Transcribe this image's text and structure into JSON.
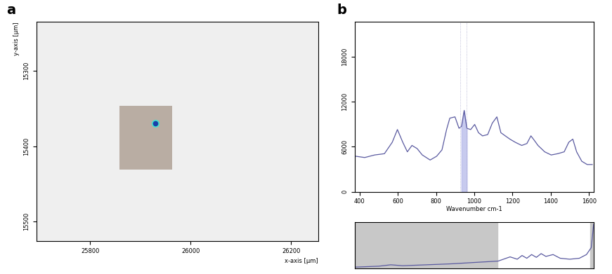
{
  "chart_data": [
    {
      "type": "scatter",
      "panel_label": "a",
      "x_label": "x-axis [µm]",
      "y_label": "y-axis [µm]",
      "x": [
        25930
      ],
      "y": [
        15370
      ],
      "color": "#1a3fa8",
      "image_region": {
        "x": [
          25859,
          25964
        ],
        "y": [
          15346,
          15431
        ]
      },
      "xlim": [
        25694,
        26254
      ],
      "ylim": [
        15526,
        15235
      ],
      "xticks": [
        25800,
        26000,
        26200
      ],
      "yticks": [
        15300,
        15400,
        15500
      ]
    },
    {
      "type": "line",
      "panel_label": "b",
      "x_label": "Wavenumber cm-1",
      "color": "#5a5aa0",
      "x": [
        380,
        427,
        479,
        530,
        571,
        598,
        626,
        650,
        674,
        701,
        728,
        769,
        803,
        831,
        855,
        872,
        899,
        920,
        933,
        947,
        961,
        981,
        1002,
        1022,
        1043,
        1070,
        1094,
        1118,
        1139,
        1162,
        1186,
        1214,
        1248,
        1275,
        1296,
        1309,
        1333,
        1368,
        1402,
        1436,
        1470,
        1494,
        1515,
        1535,
        1562,
        1590,
        1617
      ],
      "values": [
        4730,
        4560,
        4900,
        5070,
        6590,
        8280,
        6590,
        5320,
        6170,
        5750,
        4900,
        4230,
        4730,
        5580,
        8280,
        9800,
        9970,
        8450,
        8700,
        10820,
        8450,
        8280,
        8960,
        7860,
        7440,
        7610,
        9130,
        9970,
        7860,
        7440,
        7010,
        6590,
        6170,
        6420,
        7440,
        7010,
        6170,
        5320,
        4900,
        5070,
        5320,
        6590,
        7010,
        5320,
        4060,
        3630,
        3630
      ],
      "highlight_range": [
        926,
        961
      ],
      "xlim": [
        376,
        1624
      ],
      "ylim": [
        0,
        22600
      ],
      "xticks": [
        400,
        600,
        800,
        1000,
        1200,
        1400,
        1600
      ],
      "yticks": [
        0,
        6000,
        12000,
        18000
      ]
    },
    {
      "type": "line",
      "tick_labels": false,
      "color": "#5a5aa0",
      "x": [
        0,
        100,
        150,
        200,
        300,
        400,
        500,
        600,
        650,
        680,
        700,
        720,
        740,
        760,
        780,
        800,
        830,
        860,
        900,
        940,
        970,
        990,
        1000
      ],
      "values": [
        3,
        5,
        8,
        6,
        8,
        10,
        13,
        16,
        25,
        20,
        28,
        22,
        30,
        24,
        32,
        26,
        30,
        22,
        20,
        22,
        30,
        45,
        95
      ],
      "window": [
        598,
        986
      ],
      "xlim": [
        0,
        1000
      ],
      "ylim": [
        0,
        100
      ]
    }
  ]
}
